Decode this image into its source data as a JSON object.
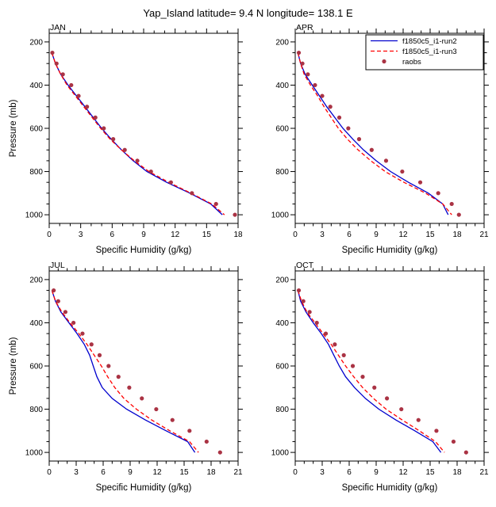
{
  "title": "Yap_Island  latitude= 9.4 N longitude= 138.1 E",
  "colors": {
    "run2": "#0000cd",
    "run3": "#ff0000",
    "raobs": "#aa3344",
    "axis": "#000000"
  },
  "legend": {
    "location": "top-right of APR panel",
    "entries": [
      {
        "label": "f1850c5_i1-run2",
        "style": "solid",
        "color": "#0000cd"
      },
      {
        "label": "f1850c5_i1-run3",
        "style": "dashed",
        "color": "#ff0000"
      },
      {
        "label": "raobs",
        "style": "markers",
        "color": "#aa3344"
      }
    ]
  },
  "chart_data": [
    {
      "type": "line",
      "title": "JAN",
      "xlabel": "Specific Humidity (g/kg)",
      "ylabel": "Pressure (mb)",
      "show_ylabel": true,
      "show_legend": false,
      "xlim": [
        0,
        18
      ],
      "xticks": [
        0,
        3,
        6,
        9,
        12,
        15,
        18
      ],
      "xminor_step": 1,
      "ylim": [
        160,
        1040
      ],
      "yticks": [
        200,
        400,
        600,
        800,
        1000
      ],
      "yminor_step": 50,
      "y_axis_inverted": true,
      "pressure": [
        250,
        300,
        350,
        400,
        450,
        500,
        550,
        600,
        650,
        700,
        750,
        800,
        850,
        900,
        950,
        1000
      ],
      "series": [
        {
          "name": "f1850c5_i1-run2",
          "style": "solid",
          "color": "#0000cd",
          "values": [
            0.25,
            0.6,
            1.1,
            1.8,
            2.6,
            3.4,
            4.2,
            5.0,
            5.9,
            6.9,
            8.0,
            9.3,
            11.2,
            13.4,
            15.4,
            16.5
          ]
        },
        {
          "name": "f1850c5_i1-run3",
          "style": "dashed",
          "color": "#ff0000",
          "values": [
            0.25,
            0.6,
            1.1,
            1.7,
            2.5,
            3.3,
            4.1,
            4.9,
            5.8,
            6.9,
            8.1,
            9.5,
            11.4,
            13.5,
            15.5,
            16.7
          ]
        },
        {
          "name": "raobs",
          "style": "markers",
          "color": "#aa3344",
          "values": [
            0.3,
            0.7,
            1.3,
            2.1,
            2.8,
            3.6,
            4.4,
            5.2,
            6.1,
            7.2,
            8.4,
            9.7,
            11.6,
            13.6,
            15.9,
            17.7
          ]
        }
      ]
    },
    {
      "type": "line",
      "title": "APR",
      "xlabel": "Specific Humidity (g/kg)",
      "ylabel": "Pressure (mb)",
      "show_ylabel": false,
      "show_legend": true,
      "xlim": [
        0,
        21
      ],
      "xticks": [
        0,
        3,
        6,
        9,
        12,
        15,
        18,
        21
      ],
      "xminor_step": 1,
      "ylim": [
        160,
        1040
      ],
      "yticks": [
        200,
        400,
        600,
        800,
        1000
      ],
      "yminor_step": 50,
      "y_axis_inverted": true,
      "pressure": [
        250,
        300,
        350,
        400,
        450,
        500,
        550,
        600,
        650,
        700,
        750,
        800,
        850,
        900,
        950,
        1000
      ],
      "series": [
        {
          "name": "f1850c5_i1-run2",
          "style": "solid",
          "color": "#0000cd",
          "values": [
            0.3,
            0.6,
            1.1,
            1.9,
            2.7,
            3.5,
            4.4,
            5.3,
            6.4,
            7.6,
            9.0,
            10.6,
            12.6,
            14.8,
            16.4,
            17.0
          ]
        },
        {
          "name": "f1850c5_i1-run3",
          "style": "dashed",
          "color": "#ff0000",
          "values": [
            0.3,
            0.6,
            1.0,
            1.7,
            2.5,
            3.2,
            4.0,
            4.8,
            5.8,
            7.0,
            8.4,
            10.0,
            12.1,
            14.5,
            16.4,
            17.4
          ]
        },
        {
          "name": "raobs",
          "style": "markers",
          "color": "#aa3344",
          "values": [
            0.4,
            0.8,
            1.4,
            2.2,
            3.0,
            3.9,
            4.9,
            5.9,
            7.1,
            8.5,
            10.1,
            11.9,
            13.9,
            15.9,
            17.4,
            18.2
          ]
        }
      ]
    },
    {
      "type": "line",
      "title": "JUL",
      "xlabel": "Specific Humidity (g/kg)",
      "ylabel": "Pressure (mb)",
      "show_ylabel": true,
      "show_legend": false,
      "xlim": [
        0,
        21
      ],
      "xticks": [
        0,
        3,
        6,
        9,
        12,
        15,
        18,
        21
      ],
      "xminor_step": 1,
      "ylim": [
        160,
        1040
      ],
      "yticks": [
        200,
        400,
        600,
        800,
        1000
      ],
      "yminor_step": 50,
      "y_axis_inverted": true,
      "pressure": [
        250,
        300,
        350,
        400,
        450,
        500,
        550,
        600,
        650,
        700,
        750,
        800,
        850,
        900,
        950,
        1000
      ],
      "series": [
        {
          "name": "f1850c5_i1-run2",
          "style": "solid",
          "color": "#0000cd",
          "values": [
            0.3,
            0.7,
            1.3,
            2.2,
            3.1,
            3.9,
            4.5,
            4.9,
            5.3,
            5.9,
            7.0,
            8.6,
            10.7,
            13.0,
            15.4,
            16.2
          ]
        },
        {
          "name": "f1850c5_i1-run3",
          "style": "dashed",
          "color": "#ff0000",
          "values": [
            0.3,
            0.7,
            1.4,
            2.3,
            3.3,
            4.2,
            5.0,
            5.8,
            6.5,
            7.3,
            8.3,
            9.7,
            11.4,
            13.4,
            15.6,
            16.6
          ]
        },
        {
          "name": "raobs",
          "style": "markers",
          "color": "#aa3344",
          "values": [
            0.5,
            1.0,
            1.8,
            2.7,
            3.7,
            4.7,
            5.6,
            6.6,
            7.7,
            8.9,
            10.3,
            11.9,
            13.7,
            15.6,
            17.5,
            19.0
          ]
        }
      ]
    },
    {
      "type": "line",
      "title": "OCT",
      "xlabel": "Specific Humidity (g/kg)",
      "ylabel": "Pressure (mb)",
      "show_ylabel": false,
      "show_legend": false,
      "xlim": [
        0,
        21
      ],
      "xticks": [
        0,
        3,
        6,
        9,
        12,
        15,
        18,
        21
      ],
      "xminor_step": 1,
      "ylim": [
        160,
        1040
      ],
      "yticks": [
        200,
        400,
        600,
        800,
        1000
      ],
      "yminor_step": 50,
      "y_axis_inverted": true,
      "pressure": [
        250,
        300,
        350,
        400,
        450,
        500,
        550,
        600,
        650,
        700,
        750,
        800,
        850,
        900,
        950,
        1000
      ],
      "series": [
        {
          "name": "f1850c5_i1-run2",
          "style": "solid",
          "color": "#0000cd",
          "values": [
            0.3,
            0.6,
            1.2,
            2.0,
            2.9,
            3.7,
            4.3,
            4.9,
            5.6,
            6.6,
            7.8,
            9.3,
            11.2,
            13.3,
            15.3,
            16.2
          ]
        },
        {
          "name": "f1850c5_i1-run3",
          "style": "dashed",
          "color": "#ff0000",
          "values": [
            0.3,
            0.7,
            1.3,
            2.2,
            3.1,
            4.0,
            4.8,
            5.6,
            6.5,
            7.5,
            8.7,
            10.1,
            11.9,
            13.8,
            15.6,
            16.6
          ]
        },
        {
          "name": "raobs",
          "style": "markers",
          "color": "#aa3344",
          "values": [
            0.4,
            0.9,
            1.6,
            2.4,
            3.4,
            4.4,
            5.4,
            6.4,
            7.5,
            8.8,
            10.2,
            11.8,
            13.7,
            15.7,
            17.6,
            19.0
          ]
        }
      ]
    }
  ]
}
